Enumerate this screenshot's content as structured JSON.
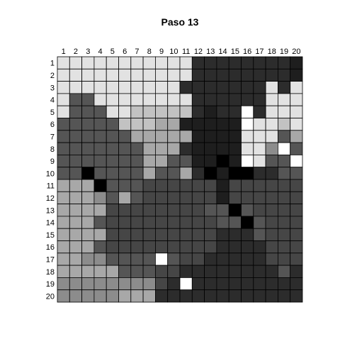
{
  "chart_data": {
    "type": "heatmap",
    "title": "Paso 13",
    "x_ticks": [
      "1",
      "2",
      "3",
      "4",
      "5",
      "6",
      "7",
      "8",
      "9",
      "10",
      "11",
      "12",
      "13",
      "14",
      "15",
      "16",
      "17",
      "18",
      "19",
      "20"
    ],
    "y_ticks": [
      "1",
      "2",
      "3",
      "4",
      "5",
      "6",
      "7",
      "8",
      "9",
      "10",
      "11",
      "12",
      "13",
      "14",
      "15",
      "16",
      "17",
      "18",
      "19",
      "20"
    ],
    "grid": true,
    "colors": {
      "cell_border": "#000000",
      "level_map": {
        "0": "#000000",
        "1": "#1e1e1e",
        "2": "#2c2c2c",
        "3": "#3a3a3a",
        "4": "#464646",
        "5": "#555555",
        "6": "#6e6e6e",
        "7": "#8c8c8c",
        "8": "#a8a8a8",
        "9": "#c2c2c2",
        "10": "#e2e2e2",
        "11": "#ffffff"
      }
    },
    "values": [
      [
        10,
        10,
        10,
        10,
        10,
        10,
        10,
        10,
        10,
        10,
        10,
        2,
        2,
        2,
        2,
        2,
        2,
        2,
        2,
        1
      ],
      [
        10,
        10,
        10,
        10,
        10,
        10,
        10,
        10,
        10,
        10,
        10,
        2,
        2,
        2,
        2,
        2,
        2,
        2,
        2,
        1
      ],
      [
        10,
        10,
        10,
        10,
        10,
        10,
        10,
        10,
        10,
        10,
        2,
        2,
        2,
        2,
        2,
        2,
        2,
        10,
        2,
        10
      ],
      [
        10,
        5,
        5,
        10,
        10,
        10,
        10,
        10,
        10,
        10,
        10,
        2,
        2,
        2,
        2,
        2,
        2,
        10,
        10,
        10
      ],
      [
        10,
        5,
        5,
        5,
        10,
        10,
        9,
        9,
        9,
        9,
        9,
        2,
        1,
        2,
        2,
        11,
        2,
        10,
        10,
        10
      ],
      [
        5,
        5,
        5,
        5,
        5,
        9,
        9,
        9,
        8,
        8,
        1,
        1,
        1,
        1,
        1,
        11,
        10,
        10,
        9,
        10
      ],
      [
        5,
        5,
        5,
        5,
        5,
        5,
        8,
        8,
        8,
        8,
        8,
        1,
        1,
        1,
        1,
        10,
        10,
        10,
        5,
        8
      ],
      [
        5,
        5,
        5,
        5,
        5,
        5,
        5,
        8,
        8,
        8,
        2,
        1,
        1,
        1,
        1,
        10,
        10,
        7,
        11,
        5
      ],
      [
        5,
        5,
        5,
        5,
        5,
        5,
        5,
        8,
        8,
        5,
        5,
        1,
        1,
        0,
        1,
        11,
        10,
        5,
        5,
        11
      ],
      [
        5,
        5,
        0,
        5,
        5,
        5,
        5,
        8,
        5,
        5,
        8,
        2,
        0,
        1,
        0,
        0,
        2,
        2,
        5,
        5
      ],
      [
        8,
        8,
        8,
        0,
        5,
        5,
        5,
        4,
        4,
        4,
        4,
        4,
        4,
        1,
        4,
        4,
        4,
        4,
        4,
        4
      ],
      [
        8,
        8,
        8,
        7,
        5,
        8,
        5,
        4,
        4,
        4,
        4,
        4,
        4,
        1,
        4,
        4,
        4,
        4,
        4,
        4
      ],
      [
        8,
        8,
        8,
        8,
        4,
        4,
        4,
        4,
        4,
        4,
        4,
        4,
        5,
        5,
        0,
        5,
        4,
        4,
        4,
        4
      ],
      [
        8,
        8,
        8,
        5,
        4,
        4,
        4,
        4,
        4,
        4,
        4,
        4,
        4,
        5,
        5,
        0,
        5,
        4,
        4,
        4
      ],
      [
        8,
        8,
        8,
        8,
        4,
        4,
        4,
        4,
        4,
        4,
        4,
        4,
        4,
        2,
        2,
        2,
        5,
        4,
        4,
        4
      ],
      [
        8,
        8,
        8,
        5,
        4,
        4,
        4,
        4,
        4,
        4,
        4,
        4,
        4,
        2,
        2,
        2,
        2,
        4,
        4,
        4
      ],
      [
        8,
        8,
        7,
        7,
        5,
        5,
        5,
        5,
        11,
        5,
        4,
        4,
        2,
        2,
        2,
        2,
        2,
        4,
        4,
        4
      ],
      [
        8,
        8,
        8,
        8,
        8,
        5,
        5,
        5,
        4,
        4,
        2,
        2,
        2,
        2,
        2,
        2,
        2,
        2,
        5,
        2
      ],
      [
        7,
        7,
        7,
        7,
        7,
        7,
        7,
        7,
        4,
        2,
        11,
        2,
        2,
        2,
        2,
        2,
        2,
        2,
        2,
        2
      ],
      [
        7,
        7,
        7,
        7,
        7,
        8,
        8,
        8,
        2,
        2,
        2,
        2,
        2,
        2,
        2,
        2,
        2,
        2,
        2,
        2
      ]
    ]
  }
}
